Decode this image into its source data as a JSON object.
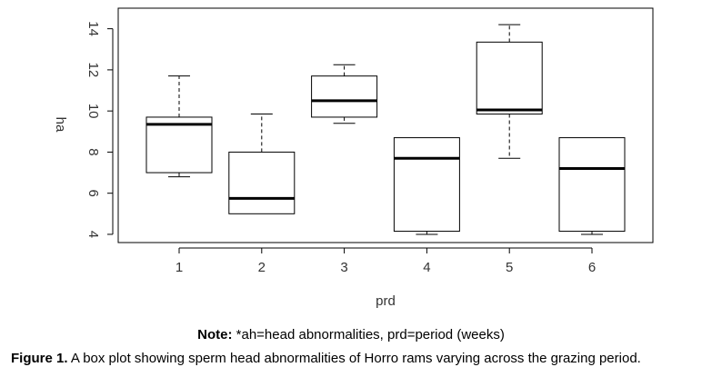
{
  "chart_data": {
    "type": "boxplot",
    "xlabel": "prd",
    "ylabel": "ha",
    "categories": [
      "1",
      "2",
      "3",
      "4",
      "5",
      "6"
    ],
    "yticks": [
      4,
      6,
      8,
      10,
      12,
      14
    ],
    "ylim": [
      3.6,
      15.0
    ],
    "grid": false,
    "boxes": [
      {
        "category": "1",
        "min": 6.8,
        "q1": 7.0,
        "median": 9.35,
        "q3": 9.7,
        "max": 11.7
      },
      {
        "category": "2",
        "min": 5.0,
        "q1": 5.0,
        "median": 5.75,
        "q3": 8.0,
        "max": 9.85
      },
      {
        "category": "3",
        "min": 9.4,
        "q1": 9.7,
        "median": 10.5,
        "q3": 11.7,
        "max": 12.25
      },
      {
        "category": "4",
        "min": 4.0,
        "q1": 4.15,
        "median": 7.7,
        "q3": 8.7,
        "max": 8.7
      },
      {
        "category": "5",
        "min": 7.7,
        "q1": 9.85,
        "median": 10.05,
        "q3": 13.35,
        "max": 14.2
      },
      {
        "category": "6",
        "min": 4.0,
        "q1": 4.15,
        "median": 7.2,
        "q3": 8.7,
        "max": 8.7
      }
    ]
  },
  "note": {
    "label": "Note:",
    "text": " *ah=head abnormalities, prd=period (weeks)"
  },
  "caption": {
    "label": "Figure 1.",
    "text": " A box plot showing sperm head abnormalities of Horro rams varying across the grazing period."
  }
}
